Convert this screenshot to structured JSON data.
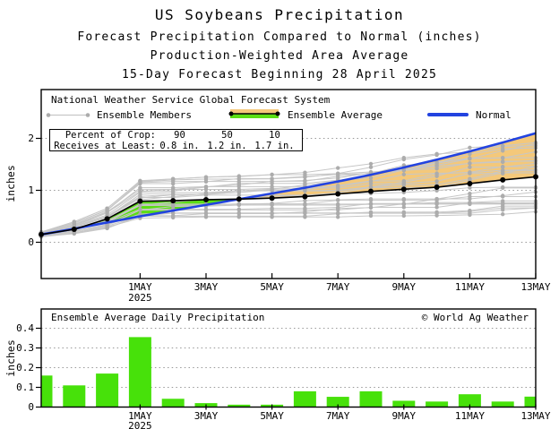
{
  "header": {
    "title": "US Soybeans Precipitation",
    "subtitle1": "Forecast Precipitation Compared to Normal (inches)",
    "subtitle2": "Production-Weighted Area Average",
    "subtitle3": "15-Day Forecast Beginning 28 April 2025"
  },
  "colors": {
    "bar_green": "#47E10A",
    "fill_green": "#5BDE14",
    "fill_orange": "#F4C87A",
    "normal_blue": "#2243E0",
    "average_black": "#000000",
    "member_line_gray": "#c7c7c7",
    "member_dot_gray": "#acacac",
    "grid_gray": "#999999"
  },
  "top_chart": {
    "legend": {
      "system": "National Weather Service Global Forecast System",
      "members": "Ensemble Members",
      "average": "Ensemble Average",
      "normal": "Normal"
    },
    "crop_box": {
      "row1_label": "Percent of Crop:",
      "row2_label": "Receives at Least:",
      "percents": [
        "90",
        "50",
        "10"
      ],
      "amounts": [
        "0.8 in.",
        "1.2 in.",
        "1.7 in."
      ]
    },
    "y_axis_label": "inches",
    "y_ticks": [
      "0",
      "1",
      "2"
    ],
    "x_ticks": [
      "1MAY",
      "3MAY",
      "5MAY",
      "7MAY",
      "9MAY",
      "11MAY",
      "13MAY"
    ],
    "x_year": "2025"
  },
  "bottom_chart": {
    "title": "Ensemble Average Daily Precipitation",
    "credit": "© World Ag Weather",
    "y_axis_label": "inches",
    "y_ticks": [
      "0",
      "0.1",
      "0.2",
      "0.3",
      "0.4"
    ],
    "x_ticks": [
      "1MAY",
      "3MAY",
      "5MAY",
      "7MAY",
      "9MAY",
      "11MAY",
      "13MAY"
    ],
    "x_year": "2025"
  },
  "chart_data": [
    {
      "type": "line",
      "title": "Forecast cumulative precipitation vs normal",
      "x": [
        "28APR",
        "29APR",
        "30APR",
        "1MAY",
        "2MAY",
        "3MAY",
        "4MAY",
        "5MAY",
        "6MAY",
        "7MAY",
        "8MAY",
        "9MAY",
        "10MAY",
        "11MAY",
        "12MAY",
        "13MAY"
      ],
      "xlabel": "",
      "ylabel": "inches",
      "ylim": [
        -0.7,
        2.94
      ],
      "y_tick_values": [
        0,
        1,
        2
      ],
      "x_tick_day_indices": [
        3,
        5,
        7,
        9,
        11,
        13,
        15
      ],
      "grid": "dotted horizontal at labeled y ticks",
      "legend_position": "top inside frame",
      "series": [
        {
          "name": "Ensemble Average",
          "values": [
            0.15,
            0.25,
            0.45,
            0.79,
            0.8,
            0.82,
            0.83,
            0.85,
            0.88,
            0.93,
            0.98,
            1.02,
            1.06,
            1.13,
            1.2,
            1.26
          ]
        },
        {
          "name": "Normal",
          "values": [
            0.15,
            0.26,
            0.38,
            0.5,
            0.61,
            0.72,
            0.83,
            0.94,
            1.05,
            1.17,
            1.3,
            1.44,
            1.59,
            1.75,
            1.92,
            2.1
          ]
        }
      ],
      "fills": [
        {
          "name": "average above normal",
          "color_key": "fill_green"
        },
        {
          "name": "normal above average",
          "color_key": "fill_orange"
        }
      ],
      "ensemble_members": {
        "count": 26,
        "note": "gray monotonically increasing member traces with dots each day, spread read from chart",
        "envelope_min": [
          0.1,
          0.16,
          0.26,
          0.45,
          0.46,
          0.47,
          0.47,
          0.45,
          0.45,
          0.46,
          0.47,
          0.48,
          0.49,
          0.5,
          0.51,
          0.52
        ],
        "envelope_max": [
          0.2,
          0.4,
          0.66,
          1.2,
          1.24,
          1.27,
          1.3,
          1.32,
          1.36,
          1.45,
          1.55,
          1.65,
          1.74,
          1.86,
          1.98,
          2.1
        ]
      },
      "annotations": {
        "percent_of_crop": [
          90,
          50,
          10
        ],
        "receives_at_least_in": [
          0.8,
          1.2,
          1.7
        ]
      }
    },
    {
      "type": "bar",
      "title": "Ensemble Average Daily Precipitation",
      "categories": [
        "28APR",
        "29APR",
        "30APR",
        "1MAY",
        "2MAY",
        "3MAY",
        "4MAY",
        "5MAY",
        "6MAY",
        "7MAY",
        "8MAY",
        "9MAY",
        "10MAY",
        "11MAY",
        "12MAY",
        "13MAY"
      ],
      "values": [
        0.16,
        0.11,
        0.17,
        0.355,
        0.042,
        0.02,
        0.012,
        0.012,
        0.08,
        0.052,
        0.08,
        0.032,
        0.028,
        0.065,
        0.028,
        0.053
      ],
      "xlabel": "",
      "ylabel": "inches",
      "ylim": [
        0,
        0.5
      ],
      "y_tick_values": [
        0,
        0.1,
        0.2,
        0.3,
        0.4
      ],
      "x_tick_day_indices": [
        3,
        5,
        7,
        9,
        11,
        13,
        15
      ],
      "grid": "dotted horizontal at labeled y ticks"
    }
  ]
}
